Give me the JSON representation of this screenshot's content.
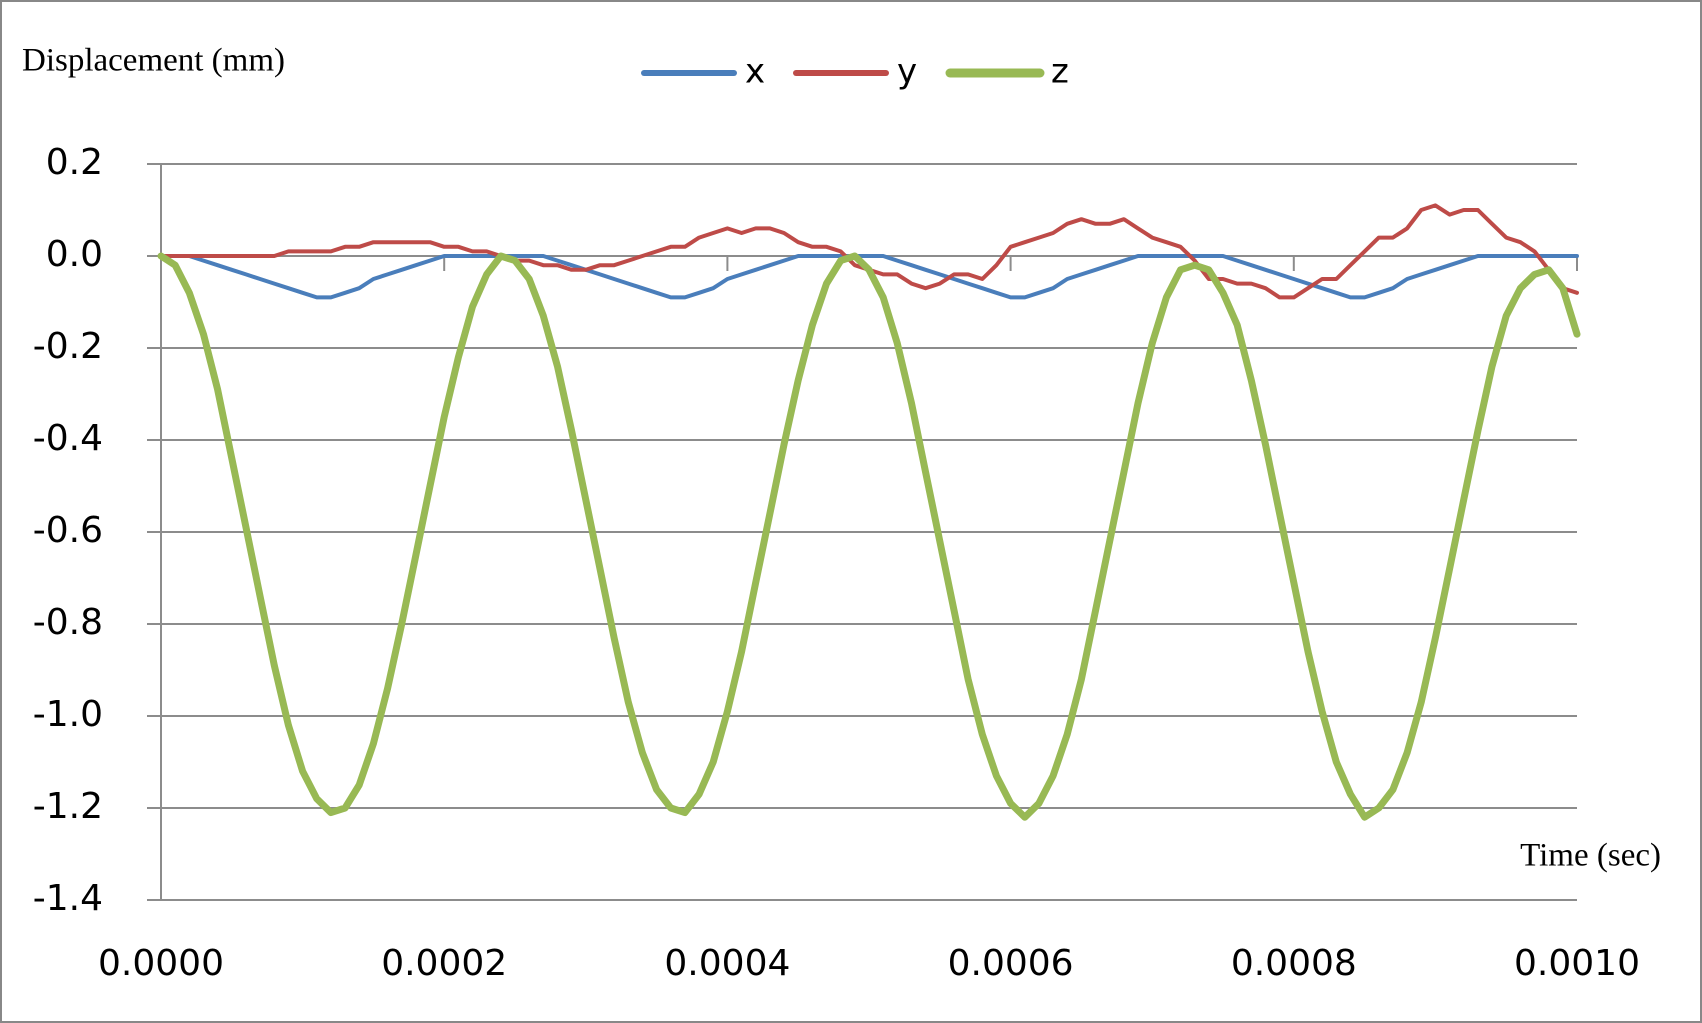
{
  "chart_data": {
    "type": "line",
    "y_label": "Displacement (mm)",
    "x_label": "Time (sec)",
    "legend": "top",
    "grid": true,
    "xlim": [
      0,
      0.001
    ],
    "xticks": [
      {
        "value": 0,
        "label": "0.0000"
      },
      {
        "value": 0.0002,
        "label": "0.0002"
      },
      {
        "value": 0.0004,
        "label": "0.0004"
      },
      {
        "value": 0.0006,
        "label": "0.0006"
      },
      {
        "value": 0.0008,
        "label": "0.0008"
      },
      {
        "value": 0.001,
        "label": "0.0010"
      }
    ],
    "ylim": [
      -1.4,
      0.2
    ],
    "yticks": [
      0.2,
      {
        "value": 0,
        "label": "0.0"
      },
      -0.2,
      -0.4,
      -0.6,
      -0.8,
      {
        "value": -1,
        "label": "-1.0"
      },
      -1.2,
      -1.4
    ],
    "x": [
      0,
      1e-05,
      2e-05,
      3e-05,
      4e-05,
      5e-05,
      6e-05,
      7e-05,
      8e-05,
      9e-05,
      0.0001,
      0.00011,
      0.00012,
      0.00013,
      0.00014,
      0.00015,
      0.00016,
      0.00017,
      0.00018,
      0.00019,
      0.0002,
      0.00021,
      0.00022,
      0.00023,
      0.00024,
      0.00025,
      0.00026,
      0.00027,
      0.00028,
      0.00029,
      0.0003,
      0.00031,
      0.00032,
      0.00033,
      0.00034,
      0.00035,
      0.00036,
      0.00037,
      0.00038,
      0.00039,
      0.0004,
      0.00041,
      0.00042,
      0.00043,
      0.00044,
      0.00045,
      0.00046,
      0.00047,
      0.00048,
      0.00049,
      0.0005,
      0.00051,
      0.00052,
      0.00053,
      0.00054,
      0.00055,
      0.00056,
      0.00057,
      0.00058,
      0.00059,
      0.0006,
      0.00061,
      0.00062,
      0.00063,
      0.00064,
      0.00065,
      0.00066,
      0.00067,
      0.00068,
      0.00069,
      0.0007,
      0.00071,
      0.00072,
      0.00073,
      0.00074,
      0.00075,
      0.00076,
      0.00077,
      0.00078,
      0.00079,
      0.0008,
      0.00081,
      0.00082,
      0.00083,
      0.00084,
      0.00085,
      0.00086,
      0.00087,
      0.00088,
      0.00089,
      0.0009,
      0.00091,
      0.00092,
      0.00093,
      0.00094,
      0.00095,
      0.00096,
      0.00097,
      0.00098,
      0.00099,
      0.001
    ],
    "series": [
      {
        "name": "x",
        "color": "#4a7ebb",
        "width": 4,
        "values": [
          0,
          0,
          0,
          -0.01,
          -0.02,
          -0.03,
          -0.04,
          -0.05,
          -0.06,
          -0.07,
          -0.08,
          -0.09,
          -0.09,
          -0.08,
          -0.07,
          -0.05,
          -0.04,
          -0.03,
          -0.02,
          -0.01,
          0,
          0,
          0,
          0,
          0,
          0,
          0,
          0,
          -0.01,
          -0.02,
          -0.03,
          -0.04,
          -0.05,
          -0.06,
          -0.07,
          -0.08,
          -0.09,
          -0.09,
          -0.08,
          -0.07,
          -0.05,
          -0.04,
          -0.03,
          -0.02,
          -0.01,
          0,
          0,
          0,
          0,
          0,
          0,
          0,
          -0.01,
          -0.02,
          -0.03,
          -0.04,
          -0.05,
          -0.06,
          -0.07,
          -0.08,
          -0.09,
          -0.09,
          -0.08,
          -0.07,
          -0.05,
          -0.04,
          -0.03,
          -0.02,
          -0.01,
          0,
          0,
          0,
          0,
          0,
          0,
          0,
          -0.01,
          -0.02,
          -0.03,
          -0.04,
          -0.05,
          -0.06,
          -0.07,
          -0.08,
          -0.09,
          -0.09,
          -0.08,
          -0.07,
          -0.05,
          -0.04,
          -0.03,
          -0.02,
          -0.01,
          0,
          0,
          0,
          0,
          0,
          0,
          0,
          0
        ]
      },
      {
        "name": "y",
        "color": "#be4b48",
        "width": 4,
        "values": [
          0,
          0,
          0,
          0,
          0,
          0,
          0,
          0,
          0,
          0.01,
          0.01,
          0.01,
          0.01,
          0.02,
          0.02,
          0.03,
          0.03,
          0.03,
          0.03,
          0.03,
          0.02,
          0.02,
          0.01,
          0.01,
          0,
          -0.01,
          -0.01,
          -0.02,
          -0.02,
          -0.03,
          -0.03,
          -0.02,
          -0.02,
          -0.01,
          0,
          0.01,
          0.02,
          0.02,
          0.04,
          0.05,
          0.06,
          0.05,
          0.06,
          0.06,
          0.05,
          0.03,
          0.02,
          0.02,
          0.01,
          -0.02,
          -0.03,
          -0.04,
          -0.04,
          -0.06,
          -0.07,
          -0.06,
          -0.04,
          -0.04,
          -0.05,
          -0.02,
          0.02,
          0.03,
          0.04,
          0.05,
          0.07,
          0.08,
          0.07,
          0.07,
          0.08,
          0.06,
          0.04,
          0.03,
          0.02,
          -0.01,
          -0.05,
          -0.05,
          -0.06,
          -0.06,
          -0.07,
          -0.09,
          -0.09,
          -0.07,
          -0.05,
          -0.05,
          -0.02,
          0.01,
          0.04,
          0.04,
          0.06,
          0.1,
          0.11,
          0.09,
          0.1,
          0.1,
          0.07,
          0.04,
          0.03,
          0.01,
          -0.03,
          -0.07,
          -0.08
        ]
      },
      {
        "name": "z",
        "color": "#98b954",
        "width": 7,
        "values": [
          0,
          -0.02,
          -0.08,
          -0.17,
          -0.29,
          -0.44,
          -0.59,
          -0.74,
          -0.89,
          -1.02,
          -1.12,
          -1.18,
          -1.21,
          -1.2,
          -1.15,
          -1.06,
          -0.94,
          -0.8,
          -0.65,
          -0.5,
          -0.35,
          -0.22,
          -0.11,
          -0.04,
          0,
          -0.01,
          -0.05,
          -0.13,
          -0.24,
          -0.38,
          -0.53,
          -0.68,
          -0.83,
          -0.97,
          -1.08,
          -1.16,
          -1.2,
          -1.21,
          -1.17,
          -1.1,
          -0.99,
          -0.86,
          -0.71,
          -0.56,
          -0.41,
          -0.27,
          -0.15,
          -0.06,
          -0.01,
          0,
          -0.03,
          -0.09,
          -0.19,
          -0.32,
          -0.47,
          -0.62,
          -0.77,
          -0.92,
          -1.04,
          -1.13,
          -1.19,
          -1.22,
          -1.19,
          -1.13,
          -1.04,
          -0.92,
          -0.77,
          -0.62,
          -0.47,
          -0.32,
          -0.19,
          -0.09,
          -0.03,
          -0.02,
          -0.03,
          -0.08,
          -0.15,
          -0.27,
          -0.41,
          -0.56,
          -0.71,
          -0.86,
          -0.99,
          -1.1,
          -1.17,
          -1.22,
          -1.2,
          -1.16,
          -1.08,
          -0.97,
          -0.83,
          -0.68,
          -0.53,
          -0.38,
          -0.24,
          -0.13,
          -0.07,
          -0.04,
          -0.03,
          -0.07,
          -0.17
        ]
      }
    ]
  }
}
